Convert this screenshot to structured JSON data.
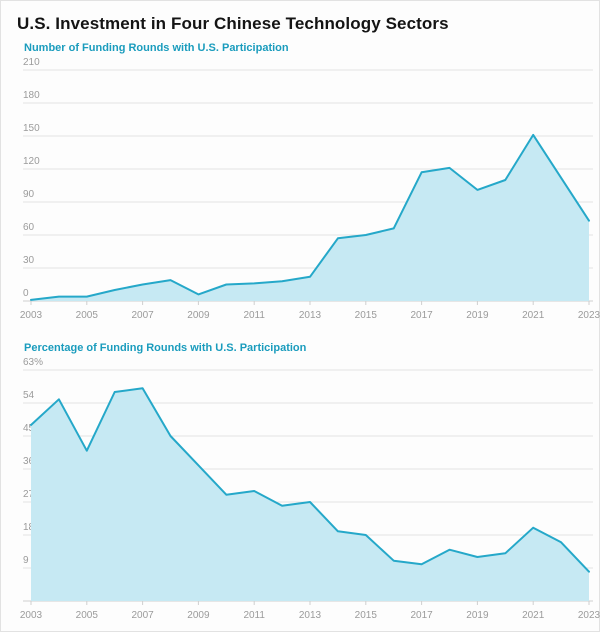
{
  "page": {
    "title": "U.S. Investment in Four Chinese Technology Sectors"
  },
  "colors": {
    "accent": "#1a9cbd",
    "area_fill": "#c6e9f3",
    "line": "#25a8c9",
    "grid": "#e4e4e4",
    "axis": "#cfcfcf",
    "tick_text": "#9b9b9b"
  },
  "chart_data": [
    {
      "type": "area",
      "title": "Number of Funding Rounds with U.S. Participation",
      "x": [
        2003,
        2004,
        2005,
        2006,
        2007,
        2008,
        2009,
        2010,
        2011,
        2012,
        2013,
        2014,
        2015,
        2016,
        2017,
        2018,
        2019,
        2020,
        2021,
        2022,
        2023
      ],
      "values": [
        1,
        4,
        4,
        10,
        15,
        19,
        6,
        15,
        16,
        18,
        22,
        57,
        60,
        66,
        117,
        121,
        101,
        110,
        151,
        112,
        73
      ],
      "ylim": [
        0,
        210
      ],
      "ytick_values": [
        0,
        30,
        60,
        90,
        120,
        150,
        180,
        210
      ],
      "ytick_labels": [
        "0",
        "30",
        "60",
        "90",
        "120",
        "150",
        "180",
        "210"
      ],
      "xtick_labels": [
        "2003",
        "2005",
        "2007",
        "2009",
        "2011",
        "2013",
        "2015",
        "2017",
        "2019",
        "2021",
        "2023"
      ],
      "grid": true,
      "legend": "none"
    },
    {
      "type": "area",
      "title": "Percentage of Funding Rounds with U.S. Participation",
      "x": [
        2003,
        2004,
        2005,
        2006,
        2007,
        2008,
        2009,
        2010,
        2011,
        2012,
        2013,
        2014,
        2015,
        2016,
        2017,
        2018,
        2019,
        2020,
        2021,
        2022,
        2023
      ],
      "values": [
        48,
        55,
        41,
        57,
        58,
        45,
        37,
        29,
        30,
        26,
        27,
        19,
        18,
        11,
        10,
        14,
        12,
        13,
        20,
        16,
        8
      ],
      "ylim": [
        0,
        63
      ],
      "ytick_values": [
        0,
        9,
        18,
        27,
        36,
        45,
        54,
        63
      ],
      "ytick_labels": [
        "",
        "9",
        "18",
        "27",
        "36",
        "45",
        "54",
        "63%"
      ],
      "xtick_labels": [
        "2003",
        "2005",
        "2007",
        "2009",
        "2011",
        "2013",
        "2015",
        "2017",
        "2019",
        "2021",
        "2023"
      ],
      "grid": true,
      "legend": "none"
    }
  ]
}
